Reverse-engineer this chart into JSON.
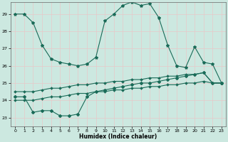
{
  "xlabel": "Humidex (Indice chaleur)",
  "xlim": [
    -0.5,
    23.5
  ],
  "ylim": [
    22.5,
    29.7
  ],
  "yticks": [
    23,
    24,
    25,
    26,
    27,
    28,
    29
  ],
  "xticks": [
    0,
    1,
    2,
    3,
    4,
    5,
    6,
    7,
    8,
    9,
    10,
    11,
    12,
    13,
    14,
    15,
    16,
    17,
    18,
    19,
    20,
    21,
    22,
    23
  ],
  "bg_color": "#cce8e0",
  "grid_color": "#e8c8c8",
  "line_color": "#1a6b58",
  "series": [
    {
      "name": "top_curve",
      "x": [
        0,
        1,
        2,
        3,
        4,
        5,
        6,
        7,
        8,
        9,
        10,
        11,
        12,
        13,
        14,
        15,
        16,
        17,
        18,
        19,
        20,
        21,
        22,
        23
      ],
      "y": [
        29.0,
        29.0,
        28.5,
        27.2,
        26.4,
        26.2,
        26.1,
        26.0,
        26.1,
        26.5,
        28.6,
        29.0,
        29.5,
        29.7,
        29.5,
        29.6,
        28.8,
        27.2,
        26.0,
        25.9,
        27.1,
        26.2,
        26.1,
        25.0
      ]
    },
    {
      "name": "upper_band",
      "x": [
        0,
        1,
        2,
        3,
        4,
        5,
        6,
        7,
        8,
        9,
        10,
        11,
        12,
        13,
        14,
        15,
        16,
        17,
        18,
        19,
        20,
        21,
        22,
        23
      ],
      "y": [
        24.5,
        24.5,
        24.5,
        24.6,
        24.7,
        24.7,
        24.8,
        24.9,
        24.9,
        25.0,
        25.0,
        25.1,
        25.1,
        25.2,
        25.2,
        25.3,
        25.3,
        25.4,
        25.4,
        25.5,
        25.5,
        25.6,
        25.0,
        25.0
      ]
    },
    {
      "name": "lower_band",
      "x": [
        0,
        1,
        2,
        3,
        4,
        5,
        6,
        7,
        8,
        9,
        10,
        11,
        12,
        13,
        14,
        15,
        16,
        17,
        18,
        19,
        20,
        21,
        22,
        23
      ],
      "y": [
        24.0,
        24.0,
        24.0,
        24.1,
        24.2,
        24.2,
        24.3,
        24.4,
        24.4,
        24.5,
        24.5,
        24.6,
        24.6,
        24.7,
        24.7,
        24.8,
        24.8,
        24.9,
        24.9,
        25.0,
        25.0,
        25.1,
        25.0,
        25.0
      ]
    },
    {
      "name": "bottom_curve",
      "x": [
        0,
        1,
        2,
        3,
        4,
        5,
        6,
        7,
        8,
        9,
        10,
        11,
        12,
        13,
        14,
        15,
        16,
        17,
        18,
        19,
        20,
        21,
        22,
        23
      ],
      "y": [
        24.2,
        24.2,
        23.3,
        23.4,
        23.4,
        23.1,
        23.1,
        23.2,
        24.2,
        24.5,
        24.6,
        24.7,
        24.8,
        24.9,
        25.0,
        25.0,
        25.1,
        25.2,
        25.3,
        25.4,
        25.5,
        25.6,
        25.0,
        25.0
      ]
    }
  ]
}
